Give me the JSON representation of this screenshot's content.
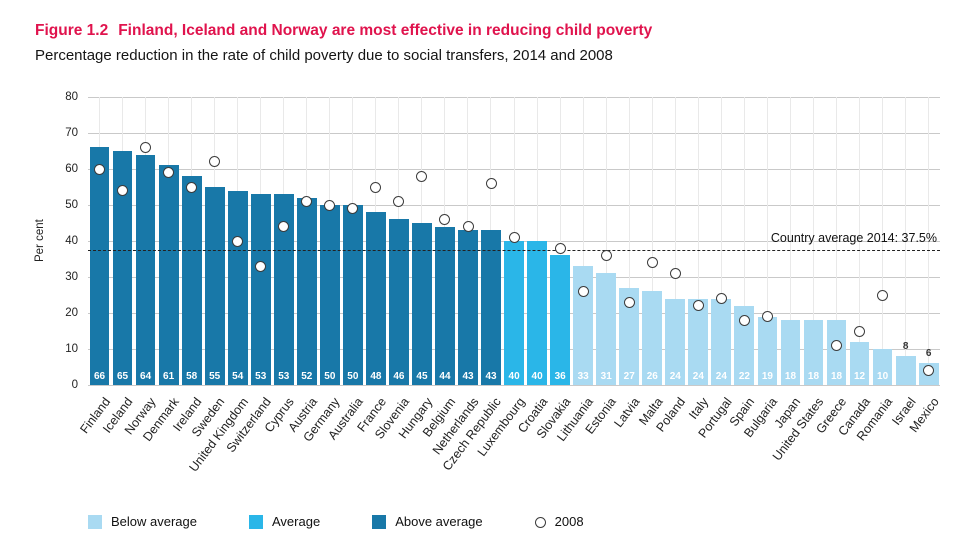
{
  "figure": {
    "label": "Figure 1.2",
    "title": "Finland, Iceland and Norway are most effective in reducing child poverty",
    "subtitle": "Percentage reduction in the rate of child poverty due to social transfers, 2014 and 2008"
  },
  "chart_data": {
    "type": "bar",
    "title": "Figure 1.2 Finland, Iceland and Norway are most effective in reducing child poverty",
    "subtitle": "Percentage reduction in the rate of child poverty due to social transfers, 2014 and 2008",
    "xlabel": "",
    "ylabel": "Per cent",
    "ylim": [
      0,
      80
    ],
    "yticks": [
      0,
      10,
      20,
      30,
      40,
      50,
      60,
      70,
      80
    ],
    "grid": "horizontal-and-light-vertical",
    "legend_position": "bottom",
    "label_inside_min": 10,
    "average_line": {
      "value": 37.5,
      "label": "Country average 2014: 37.5%"
    },
    "categories": [
      "Finland",
      "Iceland",
      "Norway",
      "Denmark",
      "Ireland",
      "Sweden",
      "United Kingdom",
      "Switzerland",
      "Cyprus",
      "Austria",
      "Germany",
      "Australia",
      "France",
      "Slovenia",
      "Hungary",
      "Belgium",
      "Netherlands",
      "Czech Republic",
      "Luxembourg",
      "Croatia",
      "Slovakia",
      "Lithuania",
      "Estonia",
      "Latvia",
      "Malta",
      "Poland",
      "Italy",
      "Portugal",
      "Spain",
      "Bulgaria",
      "Japan",
      "United States",
      "Greece",
      "Canada",
      "Romania",
      "Israel",
      "Mexico"
    ],
    "series": [
      {
        "name": "2014",
        "marker": "bar",
        "values": [
          66,
          65,
          64,
          61,
          58,
          55,
          54,
          53,
          53,
          52,
          50,
          50,
          48,
          46,
          45,
          44,
          43,
          43,
          40,
          40,
          36,
          33,
          31,
          27,
          26,
          24,
          24,
          24,
          22,
          19,
          18,
          18,
          18,
          12,
          10,
          8,
          6
        ]
      },
      {
        "name": "2008",
        "marker": "open-circle",
        "values": [
          60,
          54,
          66,
          59,
          55,
          62,
          40,
          33,
          44,
          51,
          50,
          49,
          55,
          51,
          58,
          46,
          44,
          56,
          41,
          null,
          38,
          26,
          36,
          23,
          34,
          31,
          22,
          24,
          18,
          19,
          null,
          null,
          11,
          15,
          25,
          null,
          4
        ]
      }
    ],
    "bar_category": [
      "above",
      "above",
      "above",
      "above",
      "above",
      "above",
      "above",
      "above",
      "above",
      "above",
      "above",
      "above",
      "above",
      "above",
      "above",
      "above",
      "above",
      "above",
      "average",
      "average",
      "average",
      "below",
      "below",
      "below",
      "below",
      "below",
      "below",
      "below",
      "below",
      "below",
      "below",
      "below",
      "below",
      "below",
      "below",
      "below",
      "below"
    ],
    "colors": {
      "below": "#a9daf2",
      "average": "#2ab6e8",
      "above": "#1878a8",
      "title_red": "#e0134d",
      "marker_stroke": "#3c3c3c",
      "gridline": "#c9c9c9"
    },
    "legend": [
      {
        "label": "Below average",
        "swatch": "below"
      },
      {
        "label": "Average",
        "swatch": "average"
      },
      {
        "label": "Above average",
        "swatch": "above"
      },
      {
        "label": "2008",
        "swatch": "circle"
      }
    ]
  }
}
